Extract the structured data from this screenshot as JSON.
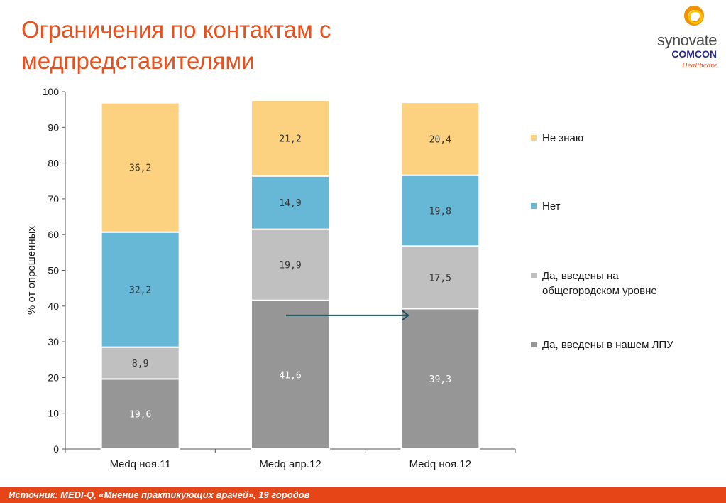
{
  "slide": {
    "title_lines": [
      "Ограничения по контактам с",
      "медпредставителями"
    ],
    "footer": "Источник:  MEDI-Q, «Мнение практикующих врачей», 19 городов"
  },
  "logo": {
    "line1": "synovate",
    "line2": "COMCON",
    "line3": "Healthcare",
    "colors": {
      "ring": "#f39200",
      "ring_inner": "#f9c400",
      "brand": "#2a2a8a"
    }
  },
  "chart_data": {
    "type": "bar",
    "stacked": true,
    "categories": [
      "Medq ноя.11",
      "Medq апр.12",
      "Medq ноя.12"
    ],
    "series": [
      {
        "name": "Да, введены в нашем ЛПУ",
        "color": "#969696",
        "values": [
          19.6,
          41.6,
          39.3
        ],
        "labels": [
          "19,6",
          "41,6",
          "39,3"
        ]
      },
      {
        "name": "Да, введены на общегородском уровне",
        "color": "#c0c0c0",
        "values": [
          8.9,
          19.9,
          17.5
        ],
        "labels": [
          "8,9",
          "19,9",
          "17,5"
        ]
      },
      {
        "name": "Нет",
        "color": "#67b7d6",
        "values": [
          32.2,
          14.9,
          19.8
        ],
        "labels": [
          "32,2",
          "14,9",
          "19,8"
        ]
      },
      {
        "name": "Не знаю",
        "color": "#fcd17f",
        "values": [
          36.2,
          21.2,
          20.4
        ],
        "labels": [
          "36,2",
          "21,2",
          "20,4"
        ]
      }
    ],
    "ylabel": "% от опрошенных",
    "ylim": [
      0,
      100
    ],
    "yticks": [
      "0",
      "10",
      "20",
      "30",
      "40",
      "50",
      "60",
      "70",
      "80",
      "90",
      "100"
    ],
    "legend_order": [
      "Не знаю",
      "Нет",
      "Да, введены на общегородском уровне",
      "Да, введены в нашем ЛПУ"
    ],
    "legend": [
      {
        "lines": [
          "Не знаю"
        ],
        "color": "#fcd17f"
      },
      {
        "lines": [
          "Нет"
        ],
        "color": "#67b7d6"
      },
      {
        "lines": [
          "Да, введены на",
          "общегородском уровне"
        ],
        "color": "#c0c0c0"
      },
      {
        "lines": [
          "Да, введены в нашем ЛПУ"
        ],
        "color": "#969696"
      }
    ],
    "legend_placement": "right",
    "grid": false,
    "annotation": {
      "type": "arrow",
      "from_category": 1,
      "to_category": 2,
      "at_value": 37
    }
  }
}
